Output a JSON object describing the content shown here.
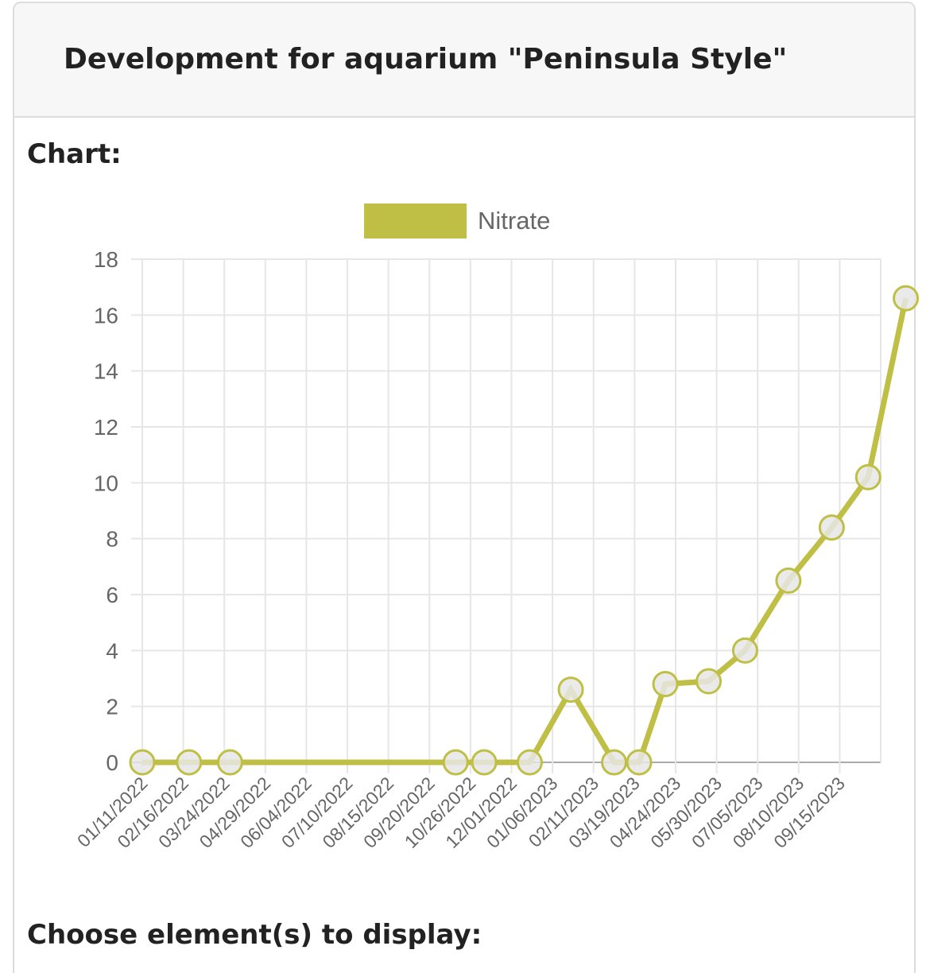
{
  "header": {
    "title": "Development for aquarium \"Peninsula Style\""
  },
  "labels": {
    "chart": "Chart:",
    "choose": "Choose element(s) to display:"
  },
  "colors": {
    "series": "#bfbf45",
    "point_fill": "#e6e6e6",
    "grid": "#e6e6e6",
    "axis": "#aaaaaa",
    "tick": "#666666"
  },
  "chart_data": {
    "type": "line",
    "title": "",
    "xlabel": "",
    "ylabel": "",
    "ylim": [
      0,
      18
    ],
    "yticks": [
      0,
      2,
      4,
      6,
      8,
      10,
      12,
      14,
      16,
      18
    ],
    "grid": true,
    "legend": "top-center",
    "x_tick_labels": [
      "01/11/2022",
      "02/16/2022",
      "03/24/2022",
      "04/29/2022",
      "06/04/2022",
      "07/10/2022",
      "08/15/2022",
      "09/20/2022",
      "10/26/2022",
      "12/01/2022",
      "01/06/2023",
      "02/11/2023",
      "03/19/2023",
      "04/24/2023",
      "05/30/2023",
      "07/05/2023",
      "08/10/2023",
      "09/15/2023"
    ],
    "x_range": [
      "01/11/2022",
      "10/21/2023"
    ],
    "series": [
      {
        "name": "Nitrate",
        "points": [
          {
            "x": "01/11/2022",
            "y": 0
          },
          {
            "x": "02/21/2022",
            "y": 0
          },
          {
            "x": "03/29/2022",
            "y": 0
          },
          {
            "x": "10/13/2022",
            "y": 0
          },
          {
            "x": "11/07/2022",
            "y": 0
          },
          {
            "x": "12/17/2022",
            "y": 0
          },
          {
            "x": "01/22/2023",
            "y": 2.6
          },
          {
            "x": "03/01/2023",
            "y": 0
          },
          {
            "x": "03/23/2023",
            "y": 0
          },
          {
            "x": "04/15/2023",
            "y": 2.8
          },
          {
            "x": "05/23/2023",
            "y": 2.9
          },
          {
            "x": "06/24/2023",
            "y": 4
          },
          {
            "x": "08/01/2023",
            "y": 6.5
          },
          {
            "x": "09/08/2023",
            "y": 8.4
          },
          {
            "x": "10/10/2023",
            "y": 10.2
          },
          {
            "x": "11/12/2023",
            "y": 16.6
          }
        ]
      }
    ]
  }
}
